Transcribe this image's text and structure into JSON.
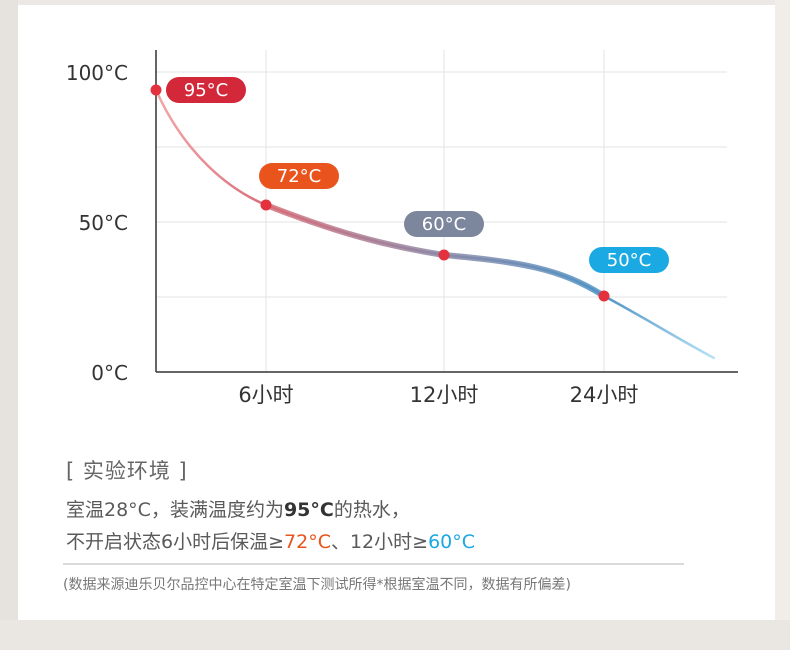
{
  "chart_data": {
    "type": "line",
    "y_ticks": [
      "100°C",
      "50°C",
      "0°C"
    ],
    "ylim": [
      0,
      100
    ],
    "categories": [
      "6小时",
      "12小时",
      "24小时"
    ],
    "points": [
      {
        "x_label": "",
        "value": 95,
        "label": "95°C",
        "color": "#d3283a"
      },
      {
        "x_label": "6小时",
        "value": 72,
        "label": "72°C",
        "color": "#e8541c"
      },
      {
        "x_label": "12小时",
        "value": 60,
        "label": "60°C",
        "color": "#7c869c"
      },
      {
        "x_label": "24小时",
        "value": 50,
        "label": "50°C",
        "color": "#1aa9e2"
      }
    ],
    "grid": true,
    "line_gradient": [
      "#e0707a",
      "#8c8aa0",
      "#4a90c0",
      "#9ad8f0"
    ]
  },
  "environment": {
    "heading": "[ 实验环境 ]",
    "line1_prefix": "室温28°C，装满温度约为",
    "line1_bold": "95°C",
    "line1_suffix": "的热水，",
    "line2_prefix": "不开启状态6小时后保温≥",
    "line2_hl1": "72°C",
    "line2_mid": "、12小时≥",
    "line2_hl2": "60°C"
  },
  "footnote": "(数据来源迪乐贝尔品控中心在特定室温下测试所得*根据室温不同，数据有所偏差)"
}
